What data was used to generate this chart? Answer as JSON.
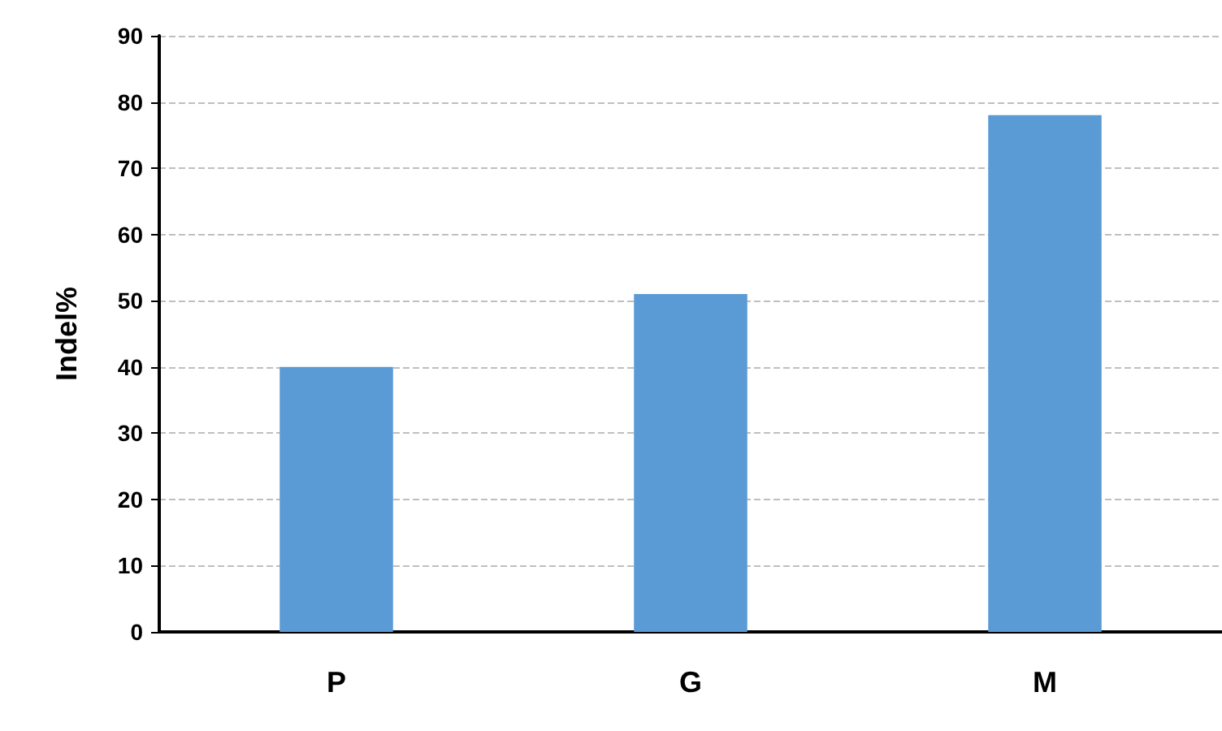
{
  "chart_data": {
    "type": "bar",
    "ylabel": "Indel%",
    "categories": [
      "P",
      "G",
      "M"
    ],
    "values": [
      40,
      51,
      78
    ],
    "color": "#5b9bd5",
    "ylim": [
      0,
      90
    ],
    "yticks": [
      0,
      10,
      20,
      30,
      40,
      50,
      60,
      70,
      80,
      90
    ],
    "grid": "y"
  }
}
